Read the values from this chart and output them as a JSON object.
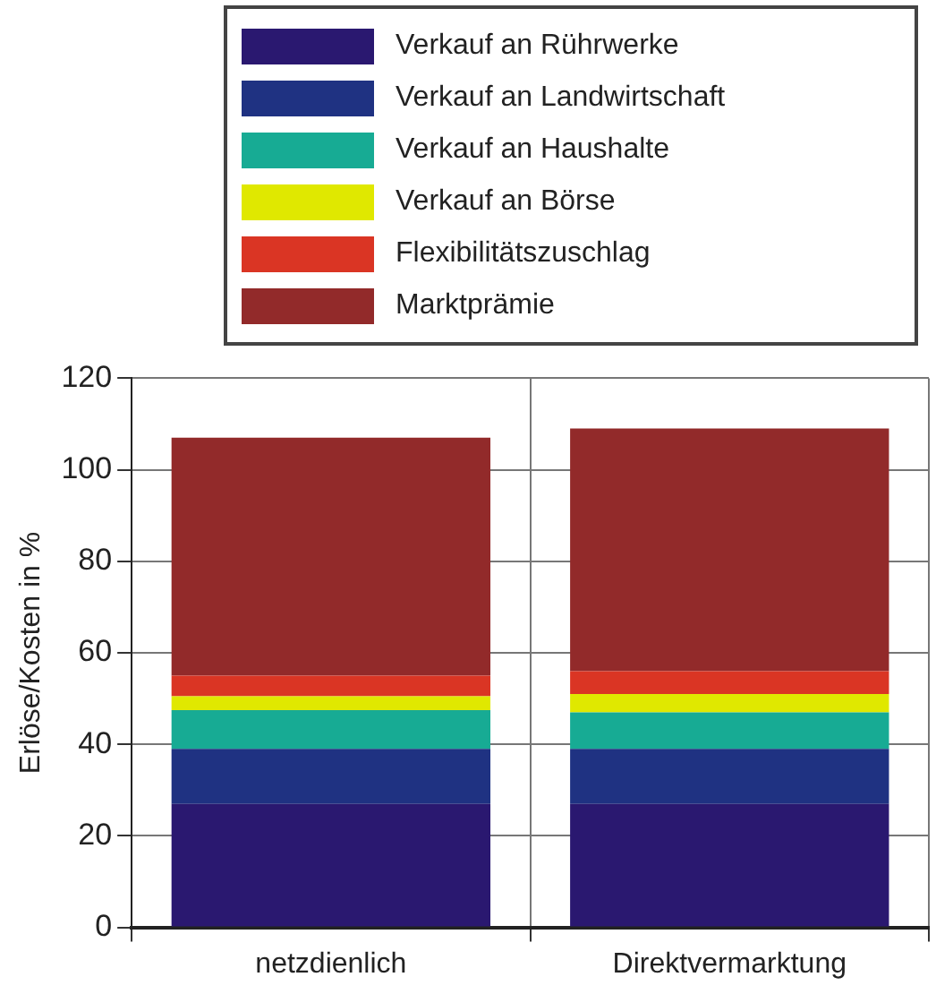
{
  "chart_data": {
    "type": "bar",
    "stacked": true,
    "ylabel": "Erlöse/Kosten in %",
    "categories": [
      "netzdienlich",
      "Direktvermarktung"
    ],
    "series": [
      {
        "name": "Verkauf an Rührwerke",
        "color": "#2a1870",
        "values": [
          27,
          27
        ]
      },
      {
        "name": "Verkauf an Landwirtschaft",
        "color": "#1f3282",
        "values": [
          12,
          12
        ]
      },
      {
        "name": "Verkauf an Haushalte",
        "color": "#17ab94",
        "values": [
          8.5,
          8
        ]
      },
      {
        "name": "Verkauf an Börse",
        "color": "#e0e800",
        "values": [
          3,
          4
        ]
      },
      {
        "name": "Flexibilitätszuschlag",
        "color": "#da3524",
        "values": [
          4.5,
          5
        ]
      },
      {
        "name": "Marktprämie",
        "color": "#922a2a",
        "values": [
          52,
          53
        ]
      }
    ],
    "ylim": [
      0,
      120
    ],
    "yticks": [
      0,
      20,
      40,
      60,
      80,
      100,
      120
    ],
    "grid": true,
    "legend": "top"
  }
}
